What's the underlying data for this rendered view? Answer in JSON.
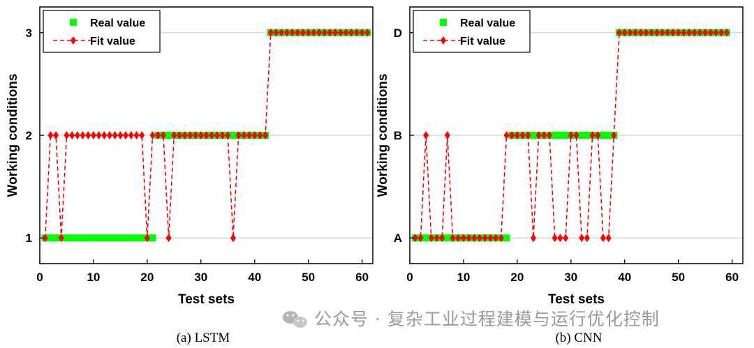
{
  "watermark": {
    "icon": "wechat-icon",
    "text": "公众号 · 复杂工业过程建模与运行优化控制"
  },
  "colors": {
    "real": "#00ff00",
    "fit": "#ff0000",
    "grid": "#d9d9d9",
    "axis": "#000000"
  },
  "chart_data": [
    {
      "type": "line",
      "caption": "(a) LSTM",
      "xlabel": "Test sets",
      "ylabel": "Working conditions",
      "xlim": [
        0,
        62
      ],
      "ylim": [
        0.75,
        3.25
      ],
      "xticks": [
        0,
        10,
        20,
        30,
        40,
        50,
        60
      ],
      "yticks": [
        1,
        2,
        3
      ],
      "ytick_labels": [
        "1",
        "2",
        "3"
      ],
      "grid": "horizontal",
      "legend_position": "top-left",
      "series": [
        {
          "name": "Real value",
          "marker": "square",
          "x": [
            1,
            2,
            3,
            4,
            5,
            6,
            7,
            8,
            9,
            10,
            11,
            12,
            13,
            14,
            15,
            16,
            17,
            18,
            19,
            20,
            21,
            22,
            23,
            24,
            25,
            26,
            27,
            28,
            29,
            30,
            31,
            32,
            33,
            34,
            35,
            36,
            37,
            38,
            39,
            40,
            41,
            42,
            43,
            44,
            45,
            46,
            47,
            48,
            49,
            50,
            51,
            52,
            53,
            54,
            55,
            56,
            57,
            58,
            59,
            60,
            61
          ],
          "y": [
            1,
            1,
            1,
            1,
            1,
            1,
            1,
            1,
            1,
            1,
            1,
            1,
            1,
            1,
            1,
            1,
            1,
            1,
            1,
            1,
            1,
            2,
            2,
            2,
            2,
            2,
            2,
            2,
            2,
            2,
            2,
            2,
            2,
            2,
            2,
            2,
            2,
            2,
            2,
            2,
            2,
            2,
            3,
            3,
            3,
            3,
            3,
            3,
            3,
            3,
            3,
            3,
            3,
            3,
            3,
            3,
            3,
            3,
            3,
            3,
            3
          ]
        },
        {
          "name": "Fit value",
          "marker": "diamond",
          "line": "dashed",
          "x": [
            1,
            2,
            3,
            4,
            5,
            6,
            7,
            8,
            9,
            10,
            11,
            12,
            13,
            14,
            15,
            16,
            17,
            18,
            19,
            20,
            21,
            22,
            23,
            24,
            25,
            26,
            27,
            28,
            29,
            30,
            31,
            32,
            33,
            34,
            35,
            36,
            37,
            38,
            39,
            40,
            41,
            42,
            43,
            44,
            45,
            46,
            47,
            48,
            49,
            50,
            51,
            52,
            53,
            54,
            55,
            56,
            57,
            58,
            59,
            60,
            61
          ],
          "y": [
            1,
            2,
            2,
            1,
            2,
            2,
            2,
            2,
            2,
            2,
            2,
            2,
            2,
            2,
            2,
            2,
            2,
            2,
            2,
            1,
            2,
            2,
            2,
            1,
            2,
            2,
            2,
            2,
            2,
            2,
            2,
            2,
            2,
            2,
            2,
            1,
            2,
            2,
            2,
            2,
            2,
            2,
            3,
            3,
            3,
            3,
            3,
            3,
            3,
            3,
            3,
            3,
            3,
            3,
            3,
            3,
            3,
            3,
            3,
            3,
            3
          ]
        }
      ]
    },
    {
      "type": "line",
      "caption": "(b) CNN",
      "xlabel": "Test sets",
      "ylabel": "Working conditions",
      "xlim": [
        0,
        62
      ],
      "ylim": [
        0.75,
        3.25
      ],
      "xticks": [
        0,
        10,
        20,
        30,
        40,
        50,
        60
      ],
      "yticks": [
        1,
        2,
        3
      ],
      "ytick_labels": [
        "A",
        "B",
        "D"
      ],
      "grid": "horizontal",
      "legend_position": "top-left",
      "series": [
        {
          "name": "Real value",
          "marker": "square",
          "x": [
            1,
            2,
            3,
            4,
            5,
            6,
            7,
            8,
            9,
            10,
            11,
            12,
            13,
            14,
            15,
            16,
            17,
            18,
            19,
            20,
            21,
            22,
            23,
            24,
            25,
            26,
            27,
            28,
            29,
            30,
            31,
            32,
            33,
            34,
            35,
            36,
            37,
            38,
            39,
            40,
            41,
            42,
            43,
            44,
            45,
            46,
            47,
            48,
            49,
            50,
            51,
            52,
            53,
            54,
            55,
            56,
            57,
            58,
            59
          ],
          "y": [
            1,
            1,
            1,
            1,
            1,
            1,
            1,
            1,
            1,
            1,
            1,
            1,
            1,
            1,
            1,
            1,
            1,
            1,
            2,
            2,
            2,
            2,
            2,
            2,
            2,
            2,
            2,
            2,
            2,
            2,
            2,
            2,
            2,
            2,
            2,
            2,
            2,
            2,
            3,
            3,
            3,
            3,
            3,
            3,
            3,
            3,
            3,
            3,
            3,
            3,
            3,
            3,
            3,
            3,
            3,
            3,
            3,
            3,
            3
          ]
        },
        {
          "name": "Fit value",
          "marker": "diamond",
          "line": "dashed",
          "x": [
            1,
            2,
            3,
            4,
            5,
            6,
            7,
            8,
            9,
            10,
            11,
            12,
            13,
            14,
            15,
            16,
            17,
            18,
            19,
            20,
            21,
            22,
            23,
            24,
            25,
            26,
            27,
            28,
            29,
            30,
            31,
            32,
            33,
            34,
            35,
            36,
            37,
            38,
            39,
            40,
            41,
            42,
            43,
            44,
            45,
            46,
            47,
            48,
            49,
            50,
            51,
            52,
            53,
            54,
            55,
            56,
            57,
            58,
            59
          ],
          "y": [
            1,
            1,
            2,
            1,
            1,
            1,
            2,
            1,
            1,
            1,
            1,
            1,
            1,
            1,
            1,
            1,
            1,
            2,
            2,
            2,
            2,
            2,
            1,
            2,
            2,
            2,
            1,
            1,
            1,
            2,
            2,
            1,
            1,
            2,
            2,
            1,
            1,
            2,
            3,
            3,
            3,
            3,
            3,
            3,
            3,
            3,
            3,
            3,
            3,
            3,
            3,
            3,
            3,
            3,
            3,
            3,
            3,
            3,
            3
          ]
        }
      ]
    }
  ]
}
